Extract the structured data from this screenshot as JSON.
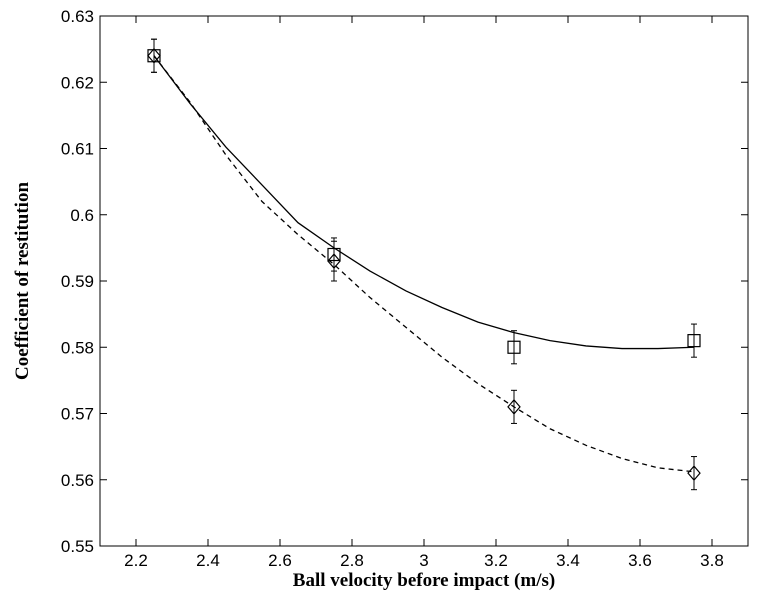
{
  "chart_data": {
    "type": "line",
    "title": "",
    "xlabel": "Ball velocity before impact (m/s)",
    "ylabel": "Coefficient of restitution",
    "xlim": [
      2.1,
      3.9
    ],
    "ylim": [
      0.55,
      0.63
    ],
    "xticks": [
      2.2,
      2.4,
      2.6,
      2.8,
      3.0,
      3.2,
      3.4,
      3.6,
      3.8
    ],
    "xtick_labels": [
      "2.2",
      "2.4",
      "2.6",
      "2.8",
      "3",
      "3.2",
      "3.4",
      "3.6",
      "3.8"
    ],
    "yticks": [
      0.55,
      0.56,
      0.57,
      0.58,
      0.59,
      0.6,
      0.61,
      0.62,
      0.63
    ],
    "ytick_labels": [
      "0.55",
      "0.56",
      "0.57",
      "0.58",
      "0.59",
      "0.6",
      "0.61",
      "0.62",
      "0.63"
    ],
    "grid": false,
    "legend": "none",
    "series": [
      {
        "marker": "square",
        "line_style": "solid",
        "color": "#000000",
        "x": [
          2.25,
          2.75,
          3.25,
          3.75
        ],
        "y": [
          0.624,
          0.594,
          0.58,
          0.581
        ],
        "error": [
          0.0025,
          0.0025,
          0.0025,
          0.0025
        ],
        "fit_curve": {
          "x": [
            2.25,
            2.35,
            2.45,
            2.55,
            2.65,
            2.75,
            2.85,
            2.95,
            3.05,
            3.15,
            3.25,
            3.35,
            3.45,
            3.55,
            3.65,
            3.75
          ],
          "y": [
            0.624,
            0.6168,
            0.6102,
            0.6045,
            0.5988,
            0.595,
            0.5915,
            0.5885,
            0.586,
            0.5838,
            0.5822,
            0.581,
            0.5802,
            0.5798,
            0.5798,
            0.58
          ]
        }
      },
      {
        "marker": "diamond",
        "line_style": "dashed",
        "color": "#000000",
        "x": [
          2.25,
          2.75,
          3.25,
          3.75
        ],
        "y": [
          0.624,
          0.593,
          0.571,
          0.561
        ],
        "error": [
          0.0025,
          0.003,
          0.0025,
          0.0025
        ],
        "fit_curve": {
          "x": [
            2.25,
            2.35,
            2.45,
            2.55,
            2.65,
            2.75,
            2.85,
            2.95,
            3.05,
            3.15,
            3.25,
            3.35,
            3.45,
            3.55,
            3.65,
            3.75
          ],
          "y": [
            0.624,
            0.617,
            0.609,
            0.602,
            0.597,
            0.5925,
            0.5875,
            0.583,
            0.5785,
            0.5745,
            0.571,
            0.5677,
            0.5652,
            0.5632,
            0.5618,
            0.5612
          ]
        }
      }
    ]
  }
}
